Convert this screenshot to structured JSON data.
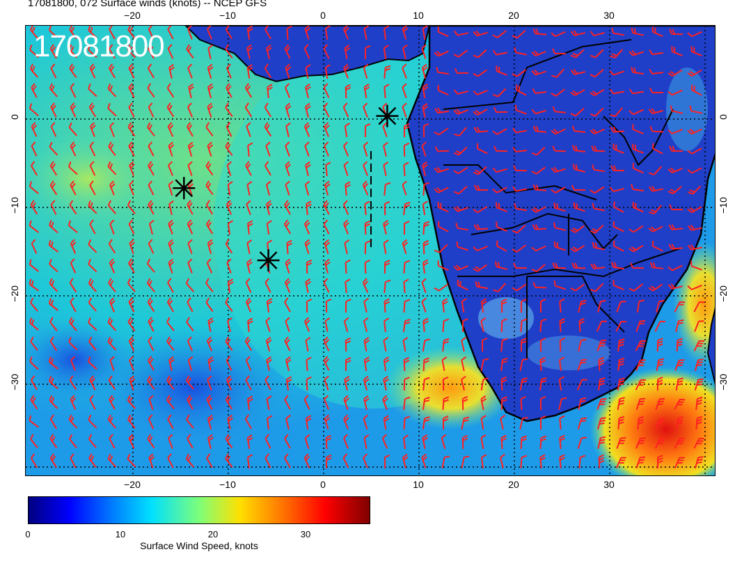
{
  "title": "17081800, 072 Surface winds (knots) -- NCEP GFS",
  "stamp": "17081800",
  "lon_ticks": [
    "−20",
    "−10",
    "0",
    "10",
    "20",
    "30"
  ],
  "lat_ticks": [
    "0",
    "−10",
    "−20",
    "−30"
  ],
  "colorbar": {
    "label": "Surface Wind Speed, knots",
    "ticks": [
      "0",
      "10",
      "20",
      "30"
    ],
    "range": [
      0,
      37
    ],
    "colors": [
      "#00007f",
      "#0000ff",
      "#0080ff",
      "#00e0ff",
      "#7dff7a",
      "#ffe000",
      "#ff7000",
      "#ff0000",
      "#7f0000"
    ]
  },
  "map": {
    "lon_range": [
      -31,
      41
    ],
    "lat_range": [
      -40,
      10
    ],
    "ocean_color": "#28c8e0",
    "land_color": "#1f3fc8",
    "barb_color": "#ff2020",
    "markers": [
      {
        "name": "storm-marker-1",
        "lon": -14.5,
        "lat": -8
      },
      {
        "name": "storm-marker-2",
        "lon": -5.7,
        "lat": -16
      },
      {
        "name": "storm-marker-3",
        "lon": 6.7,
        "lat": 0
      }
    ]
  }
}
